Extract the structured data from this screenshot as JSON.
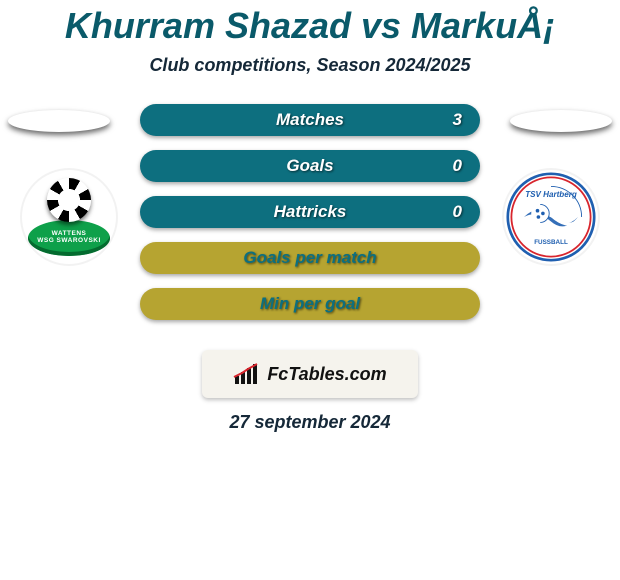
{
  "title": "Khurram Shazad vs MarkuÅ¡",
  "subtitle": "Club competitions, Season 2024/2025",
  "date": "27 september 2024",
  "footer_brand": "FcTables.com",
  "colors": {
    "title": "#0a5a6a",
    "subtitle": "#152838",
    "pill_bg_teal": "#0d6f7f",
    "pill_bg_olive": "#b6a431",
    "pill_text_white": "#ffffff",
    "pill_text_teal": "#0d6f7f",
    "footer_bg": "#f5f3ed",
    "page_bg": "#ffffff"
  },
  "stats": [
    {
      "label": "Matches",
      "value": "3",
      "bg": "#0d6f7f",
      "label_color": "#ffffff",
      "value_color": "#ffffff",
      "show_value": true
    },
    {
      "label": "Goals",
      "value": "0",
      "bg": "#0d6f7f",
      "label_color": "#ffffff",
      "value_color": "#ffffff",
      "show_value": true
    },
    {
      "label": "Hattricks",
      "value": "0",
      "bg": "#0d6f7f",
      "label_color": "#ffffff",
      "value_color": "#ffffff",
      "show_value": true
    },
    {
      "label": "Goals per match",
      "value": "",
      "bg": "#b6a431",
      "label_color": "#0d6f7f",
      "value_color": "#0d6f7f",
      "show_value": false
    },
    {
      "label": "Min per goal",
      "value": "",
      "bg": "#b6a431",
      "label_color": "#0d6f7f",
      "value_color": "#0d6f7f",
      "show_value": false
    }
  ],
  "left_club": {
    "name": "WSG Swarovski Wattens",
    "ring_text": "WATTENS\nWSG SWAROVSKI",
    "primary_color": "#0ea04a"
  },
  "right_club": {
    "name": "TSV Hartberg",
    "text_top": "TSV Hartberg",
    "text_bottom": "FUSSBALL",
    "blue": "#1f5fb0",
    "red": "#d8252d"
  }
}
